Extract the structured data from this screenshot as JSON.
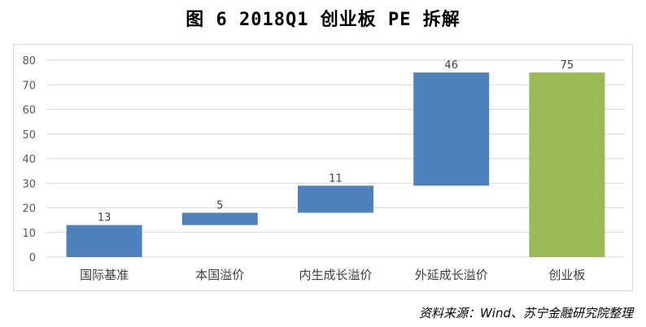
{
  "title": "图 6 2018Q1 创业板 PE 拆解",
  "source": "资料来源：Wind、苏宁金融研究院整理",
  "chart_data": {
    "type": "bar",
    "subtype": "waterfall",
    "categories": [
      "国际基准",
      "本国溢价",
      "内生成长溢价",
      "外延成长溢价",
      "创业板"
    ],
    "values": [
      13,
      5,
      11,
      46,
      75
    ],
    "base": [
      0,
      13,
      18,
      29,
      0
    ],
    "data_labels": [
      "13",
      "5",
      "11",
      "46",
      "75"
    ],
    "colors": [
      "#4f81bd",
      "#4f81bd",
      "#4f81bd",
      "#4f81bd",
      "#9bbb59"
    ],
    "ylim": [
      0,
      80
    ],
    "yticks": [
      0,
      10,
      20,
      30,
      40,
      50,
      60,
      70,
      80
    ],
    "grid": true,
    "legend": "none"
  }
}
